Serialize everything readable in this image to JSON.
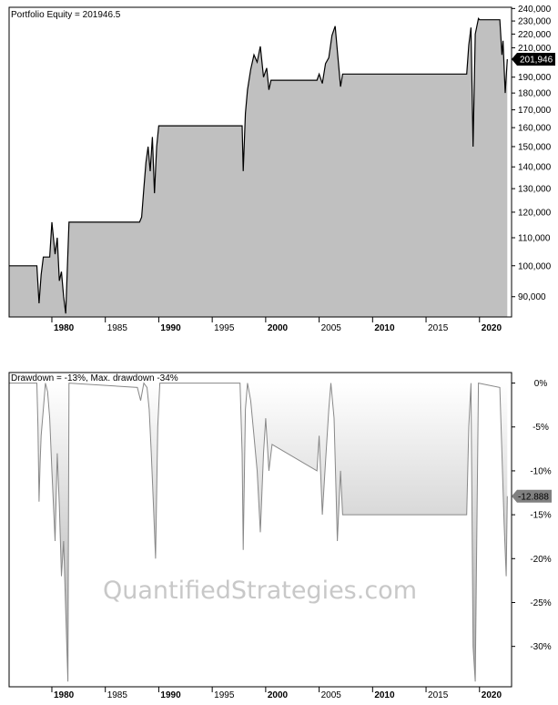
{
  "colors": {
    "equity_fill": "#c0c0c0",
    "equity_line": "#000000",
    "drawdown_line": "#888888",
    "drawdown_fill_light": "#ffffff",
    "drawdown_fill_dark": "#a8a8a8",
    "value_tag_top": "#000000",
    "value_tag_bottom": "#808080"
  },
  "watermark": "QuantifiedStrategies.com",
  "chart_data": [
    {
      "type": "area",
      "title": "Portfolio Equity = 201946.5",
      "xlabel": "",
      "ylabel": "",
      "xlim": [
        1976.0,
        2023.0
      ],
      "ylim": [
        84000,
        241000
      ],
      "y_scale": "log",
      "y_ticks": [
        {
          "v": 240000,
          "label": "240,000"
        },
        {
          "v": 230000,
          "label": "230,000"
        },
        {
          "v": 220000,
          "label": "220,000"
        },
        {
          "v": 210000,
          "label": "210,000"
        },
        {
          "v": 190000,
          "label": "190,000"
        },
        {
          "v": 180000,
          "label": "180,000"
        },
        {
          "v": 170000,
          "label": "170,000"
        },
        {
          "v": 160000,
          "label": "160,000"
        },
        {
          "v": 150000,
          "label": "150,000"
        },
        {
          "v": 140000,
          "label": "140,000"
        },
        {
          "v": 130000,
          "label": "130,000"
        },
        {
          "v": 120000,
          "label": "120,000"
        },
        {
          "v": 110000,
          "label": "110,000"
        },
        {
          "v": 100000,
          "label": "100,000"
        },
        {
          "v": 90000,
          "label": "90,000"
        }
      ],
      "x_ticks": [
        {
          "v": 1980,
          "label": "1980",
          "bold": true
        },
        {
          "v": 1985,
          "label": "1985",
          "bold": false
        },
        {
          "v": 1990,
          "label": "1990",
          "bold": true
        },
        {
          "v": 1995,
          "label": "1995",
          "bold": false
        },
        {
          "v": 2000,
          "label": "2000",
          "bold": true
        },
        {
          "v": 2005,
          "label": "2005",
          "bold": false
        },
        {
          "v": 2010,
          "label": "2010",
          "bold": true
        },
        {
          "v": 2015,
          "label": "2015",
          "bold": false
        },
        {
          "v": 2020,
          "label": "2020",
          "bold": true
        }
      ],
      "last_value_label": "201,946",
      "last_value": 201946,
      "series": [
        {
          "x": [
            1976.0,
            1978.6,
            1978.8,
            1979.0,
            1979.2,
            1979.4,
            1979.8,
            1980.0,
            1980.3,
            1980.5,
            1980.7,
            1980.9,
            1981.1,
            1981.3,
            1981.6,
            1988.2,
            1988.4,
            1988.6,
            1988.8,
            1989.0,
            1989.2,
            1989.4,
            1989.6,
            1989.8,
            1990.0,
            1997.8,
            1997.9,
            1998.1,
            1998.3,
            1998.6,
            1998.9,
            1999.2,
            1999.5,
            1999.8,
            2000.1,
            2000.3,
            2000.5,
            2004.8,
            2005.0,
            2005.3,
            2005.6,
            2005.9,
            2006.2,
            2006.5,
            2006.8,
            2007.0,
            2007.2,
            2018.8,
            2019.0,
            2019.2,
            2019.4,
            2019.6,
            2019.9,
            2020.0,
            2021.9,
            2022.1,
            2022.2,
            2022.4,
            2022.6
          ],
          "y": [
            100000,
            100000,
            88000,
            97000,
            103000,
            103000,
            103000,
            116000,
            104000,
            110000,
            95000,
            98000,
            90000,
            85000,
            116000,
            116000,
            118000,
            130000,
            142000,
            150000,
            138000,
            155000,
            128000,
            150000,
            161000,
            161000,
            138000,
            168000,
            182000,
            195000,
            205000,
            200000,
            211000,
            190000,
            196000,
            182000,
            188000,
            188000,
            192000,
            186000,
            199000,
            203000,
            219000,
            226000,
            200000,
            184000,
            192000,
            192000,
            212000,
            225000,
            150000,
            220000,
            232000,
            231000,
            231000,
            205000,
            215000,
            180000,
            201946
          ]
        }
      ]
    },
    {
      "type": "area",
      "title": "Drawdown = -13%, Max. drawdown -34%",
      "xlabel": "",
      "ylabel": "",
      "xlim": [
        1976.0,
        2023.0
      ],
      "ylim": [
        -34.6,
        1.2
      ],
      "y_ticks": [
        {
          "v": 0,
          "label": "0%"
        },
        {
          "v": -5,
          "label": "-5%"
        },
        {
          "v": -10,
          "label": "-10%"
        },
        {
          "v": -15,
          "label": "-15%"
        },
        {
          "v": -20,
          "label": "-20%"
        },
        {
          "v": -25,
          "label": "-25%"
        },
        {
          "v": -30,
          "label": "-30%"
        }
      ],
      "x_ticks": [
        {
          "v": 1980,
          "label": "1980",
          "bold": true
        },
        {
          "v": 1985,
          "label": "1985",
          "bold": false
        },
        {
          "v": 1990,
          "label": "1990",
          "bold": true
        },
        {
          "v": 1995,
          "label": "1995",
          "bold": false
        },
        {
          "v": 2000,
          "label": "2000",
          "bold": true
        },
        {
          "v": 2005,
          "label": "2005",
          "bold": false
        },
        {
          "v": 2010,
          "label": "2010",
          "bold": true
        },
        {
          "v": 2015,
          "label": "2015",
          "bold": false
        },
        {
          "v": 2020,
          "label": "2020",
          "bold": true
        }
      ],
      "last_value_label": "-12.888",
      "last_value": -12.888,
      "series": [
        {
          "x": [
            1976.0,
            1978.6,
            1978.7,
            1978.8,
            1978.9,
            1979.0,
            1979.2,
            1979.4,
            1979.6,
            1979.8,
            1980.0,
            1980.3,
            1980.5,
            1980.7,
            1980.9,
            1981.1,
            1981.3,
            1981.5,
            1981.6,
            1988.0,
            1988.3,
            1988.6,
            1988.9,
            1989.1,
            1989.3,
            1989.5,
            1989.7,
            1989.9,
            1990.1,
            1997.6,
            1997.8,
            1997.9,
            1998.1,
            1998.3,
            1998.6,
            1998.9,
            1999.2,
            1999.5,
            1999.8,
            2000.0,
            2000.3,
            2000.6,
            2004.8,
            2005.0,
            2005.3,
            2005.6,
            2005.9,
            2006.1,
            2006.4,
            2006.7,
            2007.0,
            2007.2,
            2018.8,
            2019.0,
            2019.2,
            2019.4,
            2019.6,
            2019.9,
            2021.9,
            2022.1,
            2022.3,
            2022.5,
            2022.6
          ],
          "y": [
            0,
            0,
            -5,
            -13.5,
            -9,
            -6,
            -3,
            0,
            -1,
            -4,
            -10,
            -18,
            -8,
            -14,
            -22,
            -18,
            -26,
            -34,
            0,
            -0.5,
            -2,
            0,
            -0.5,
            -3,
            -8,
            -14,
            -20,
            -5,
            0,
            0,
            -8,
            -19,
            -3,
            0,
            -2,
            -6,
            -10,
            -17,
            -8,
            -4,
            -10,
            -7,
            -10,
            -6,
            -15,
            -9,
            -3,
            0,
            -4,
            -18,
            -10,
            -15,
            -15,
            -5,
            0,
            -30,
            -34,
            0,
            -0.5,
            -8,
            -16,
            -22,
            -12.888
          ]
        }
      ]
    }
  ]
}
